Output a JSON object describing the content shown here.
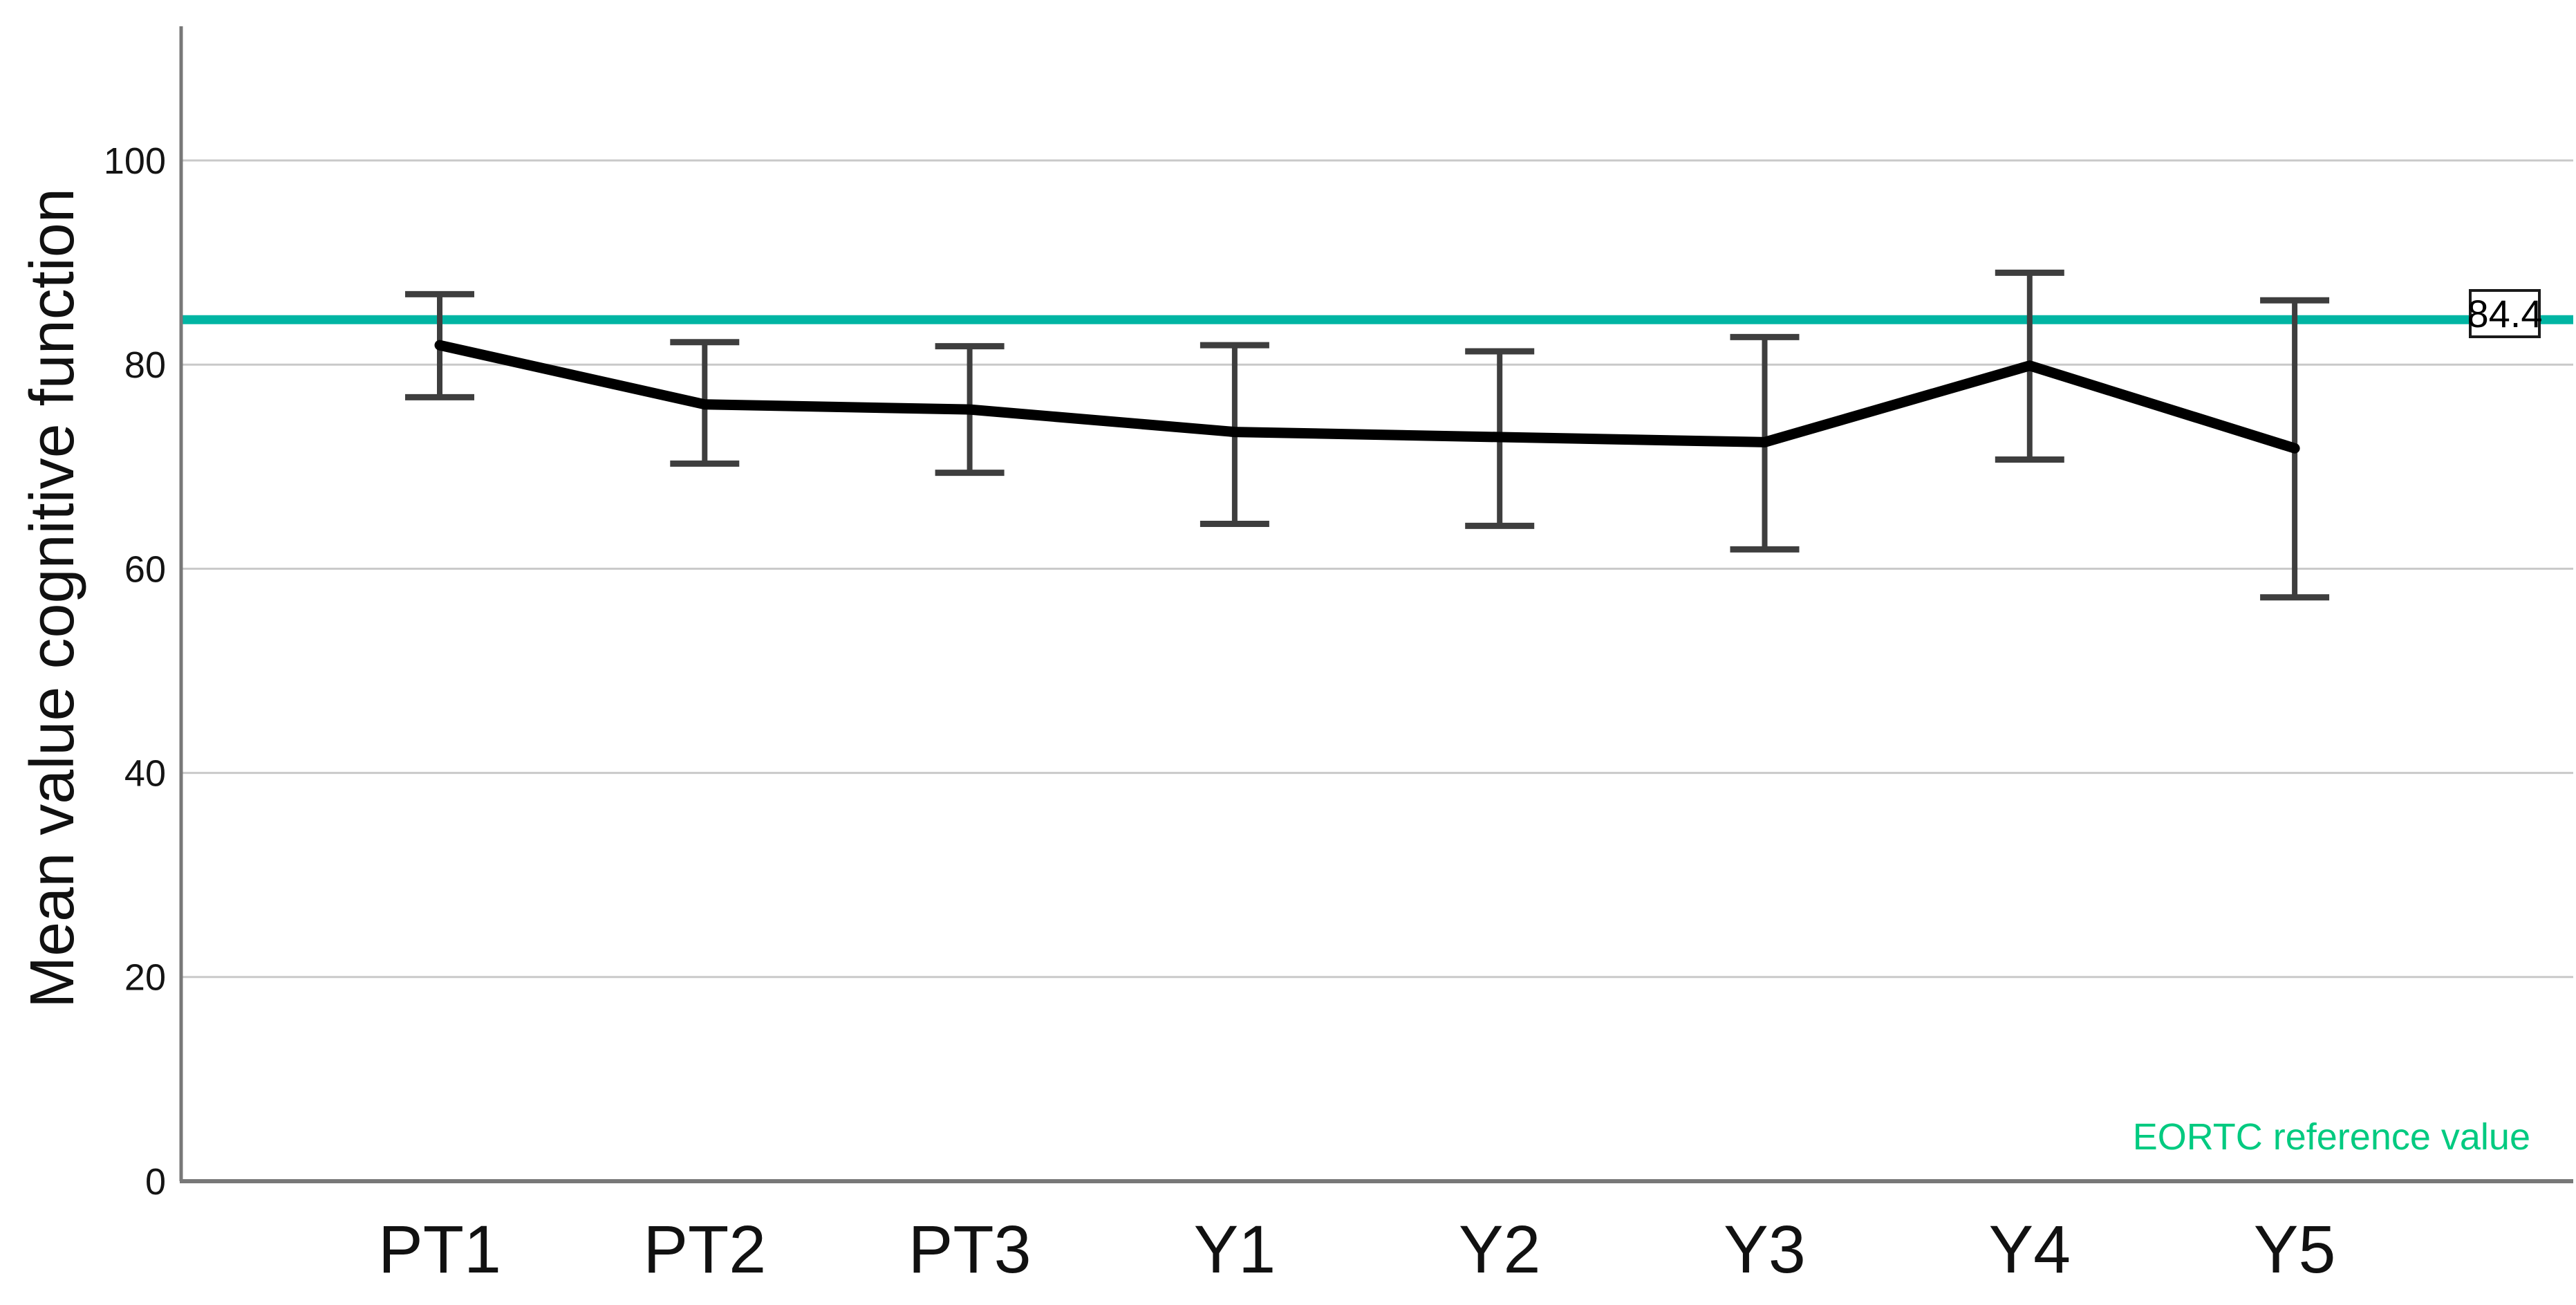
{
  "chart_data": {
    "type": "line",
    "title": "",
    "categories": [
      "PT1",
      "PT2",
      "PT3",
      "Y1",
      "Y2",
      "Y3",
      "Y4",
      "Y5"
    ],
    "series": [
      {
        "name": "Mean value cognitive function",
        "values": [
          81.9,
          76.1,
          75.6,
          73.4,
          72.9,
          72.4,
          79.9,
          71.8
        ],
        "ci_upper": [
          86.9,
          82.2,
          81.8,
          81.9,
          81.3,
          82.7,
          89.0,
          86.3
        ],
        "ci_lower": [
          76.8,
          70.3,
          69.4,
          64.4,
          64.2,
          61.9,
          70.7,
          57.2
        ]
      }
    ],
    "xlabel": "",
    "ylabel": "Mean value cognitive function",
    "ylim": [
      0,
      113
    ],
    "yticks": [
      0,
      20,
      40,
      60,
      80,
      100
    ],
    "grid": true,
    "legend_position": "none",
    "reference_line": {
      "value": 84.4,
      "label": "84.4",
      "annotation": "EORTC reference value"
    },
    "colors": {
      "series_line": "#000000",
      "error_bar": "#3e3e3e",
      "gridline": "#c9c9c9",
      "axis": "#787878",
      "tick_text": "#141414",
      "reference_line": "#00b5a3",
      "annotation_text": "#00ca80",
      "reference_label_text": "#000000",
      "reference_label_border": "#1a1a1a",
      "background": "#ffffff"
    }
  }
}
